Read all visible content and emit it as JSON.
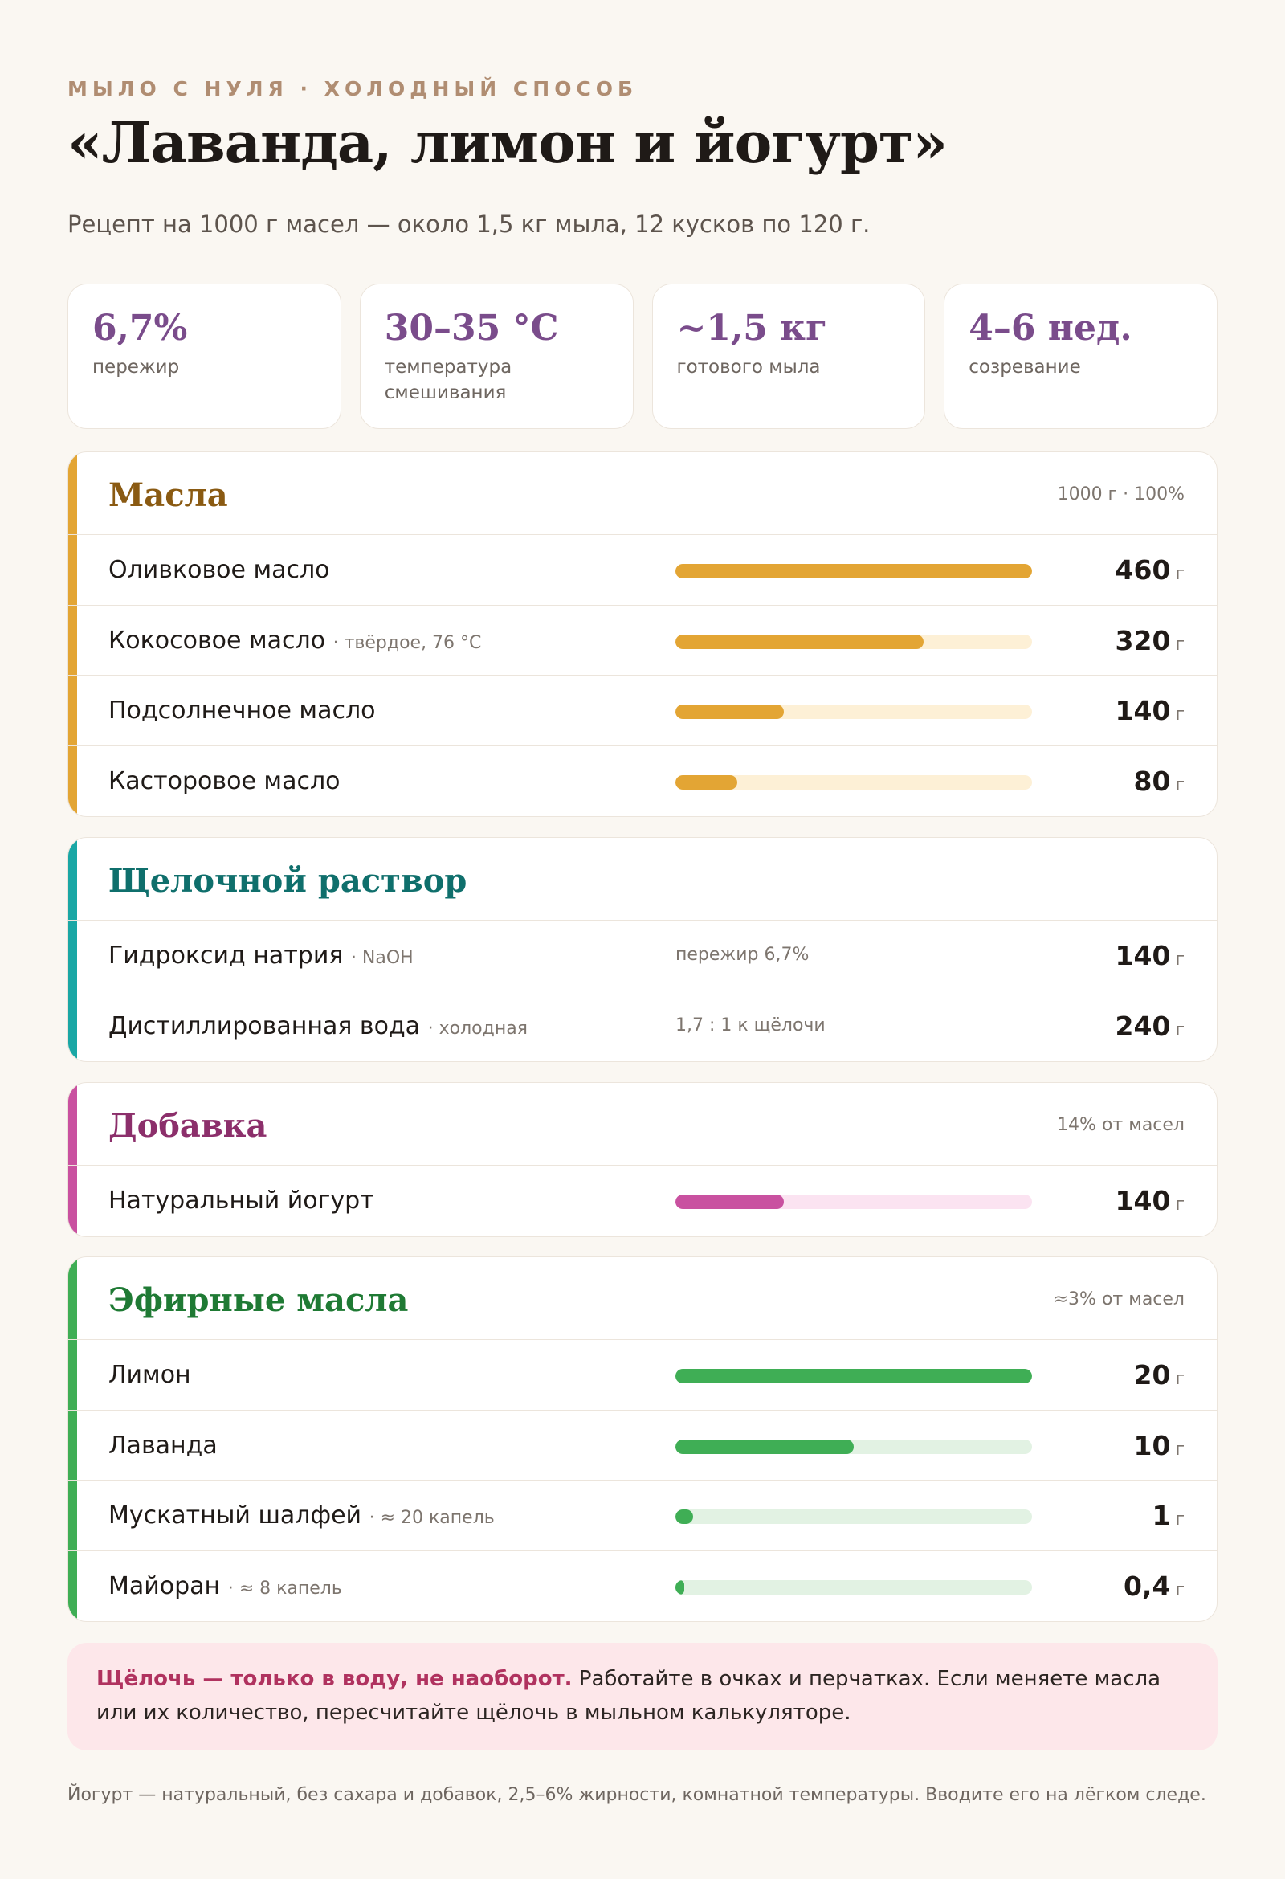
{
  "header": {
    "kicker": "МЫЛО С НУЛЯ · ХОЛОДНЫЙ СПОСОБ",
    "title": "«Лаванда, лимон и йогурт»",
    "subtitle": "Рецепт на 1000 г масел — около 1,5 кг мыла, 12 кусков по 120 г."
  },
  "stats": [
    {
      "value": "6,7%",
      "label": "пережир"
    },
    {
      "value": "30–35 °С",
      "label": "температура смешивания"
    },
    {
      "value": "~1,5 кг",
      "label": "готового мыла"
    },
    {
      "value": "4–6 нед.",
      "label": "созревание"
    }
  ],
  "sections": {
    "oils": {
      "title": "Масла",
      "meta": "1000 г · 100%",
      "accent": "#e3a534",
      "track": "#fdf0d6",
      "items": [
        {
          "name": "Оливковое масло",
          "note": "",
          "amount": "460",
          "unit": "г",
          "fraction": 1.0
        },
        {
          "name": "Кокосовое масло",
          "note": "· твёрдое, 76 °С",
          "amount": "320",
          "unit": "г",
          "fraction": 0.696
        },
        {
          "name": "Подсолнечное масло",
          "note": "",
          "amount": "140",
          "unit": "г",
          "fraction": 0.304
        },
        {
          "name": "Касторовое масло",
          "note": "",
          "amount": "80",
          "unit": "г",
          "fraction": 0.174
        }
      ]
    },
    "lye": {
      "title": "Щелочной раствор",
      "meta": "",
      "accent": "#1aa7a5",
      "items": [
        {
          "name": "Гидроксид натрия",
          "note": "· NaOH",
          "mid": "пережир 6,7%",
          "amount": "140",
          "unit": "г"
        },
        {
          "name": "Дистиллированная вода",
          "note": "· холодная",
          "mid": "1,7 : 1 к щёлочи",
          "amount": "240",
          "unit": "г"
        }
      ]
    },
    "additive": {
      "title": "Добавка",
      "meta": "14% от масел",
      "accent": "#c951a0",
      "track": "#fbe3f1",
      "items": [
        {
          "name": "Натуральный йогурт",
          "note": "",
          "amount": "140",
          "unit": "г",
          "fraction": 0.304
        }
      ]
    },
    "essential": {
      "title": "Эфирные масла",
      "meta": "≈3% от масел",
      "accent": "#3fae55",
      "track": "#e2f2e3",
      "items": [
        {
          "name": "Лимон",
          "note": "",
          "amount": "20",
          "unit": "г",
          "fraction": 1.0
        },
        {
          "name": "Лаванда",
          "note": "",
          "amount": "10",
          "unit": "г",
          "fraction": 0.5
        },
        {
          "name": "Мускатный шалфей",
          "note": "· ≈ 20 капель",
          "amount": "1",
          "unit": "г",
          "fraction": 0.05
        },
        {
          "name": "Майоран",
          "note": "· ≈ 8 капель",
          "amount": "0,4",
          "unit": "г",
          "fraction": 0.02
        }
      ]
    }
  },
  "warning": {
    "bold": "Щёлочь — только в воду, не наоборот.",
    "text": " Работайте в очках и перчатках. Если меняете масла или их количество, пересчитайте щёлочь в мыльном калькуляторе."
  },
  "footnote": "Йогурт — натуральный, без сахара и добавок, 2,5–6% жирности, комнатной температуры. Вводите его на лёгком следе."
}
